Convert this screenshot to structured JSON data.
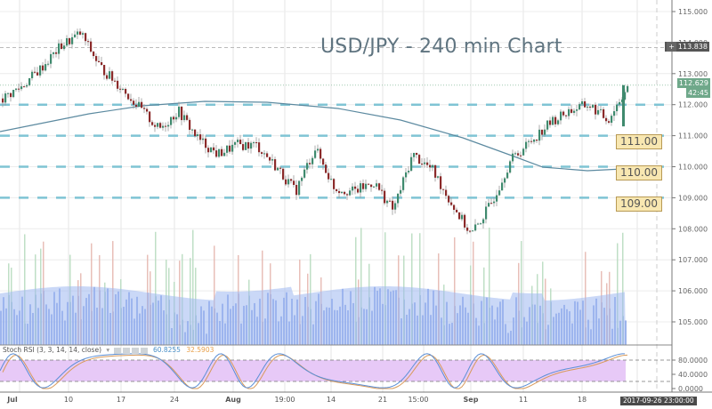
{
  "chart_data": {
    "type": "candlestick",
    "title": "USD/JPY - 240 min Chart",
    "xlabel": "",
    "ylabel": "",
    "x_tick_labels": [
      "Jul",
      "10",
      "17",
      "24",
      "Aug",
      "19:00",
      "14",
      "21",
      "15:00",
      "Sep",
      "11",
      "18"
    ],
    "y_tick_labels": [
      "115.000",
      "114.000",
      "113.000",
      "112.000",
      "111.000",
      "110.000",
      "109.000",
      "108.000",
      "107.000",
      "106.000",
      "105.000"
    ],
    "ylim": [
      104.2,
      115.2
    ],
    "grid": true,
    "horizontal_levels": [
      {
        "value": 112.0,
        "label": ""
      },
      {
        "value": 111.0,
        "label": "111.00"
      },
      {
        "value": 110.0,
        "label": "110.00"
      },
      {
        "value": 109.0,
        "label": "109.00"
      }
    ],
    "current_price": "112.629",
    "countdown": "42:45",
    "crosshair_price": "113.838",
    "crosshair_date": "2017-09-26 23:00:00",
    "price_path_approx": [
      {
        "date": "Jun 30",
        "close": 112.2
      },
      {
        "date": "Jul 3",
        "close": 112.6
      },
      {
        "date": "Jul 5",
        "close": 113.2
      },
      {
        "date": "Jul 7",
        "close": 113.9
      },
      {
        "date": "Jul 11",
        "close": 114.3
      },
      {
        "date": "Jul 13",
        "close": 113.2
      },
      {
        "date": "Jul 17",
        "close": 112.6
      },
      {
        "date": "Jul 19",
        "close": 111.9
      },
      {
        "date": "Jul 21",
        "close": 111.2
      },
      {
        "date": "Jul 24",
        "close": 111.8
      },
      {
        "date": "Jul 26",
        "close": 110.9
      },
      {
        "date": "Jul 28",
        "close": 110.4
      },
      {
        "date": "Aug 1",
        "close": 110.7
      },
      {
        "date": "Aug 4",
        "close": 110.7
      },
      {
        "date": "Aug 8",
        "close": 110.0
      },
      {
        "date": "Aug 11",
        "close": 109.2
      },
      {
        "date": "Aug 15",
        "close": 110.6
      },
      {
        "date": "Aug 18",
        "close": 109.3
      },
      {
        "date": "Aug 22",
        "close": 109.2
      },
      {
        "date": "Aug 25",
        "close": 109.5
      },
      {
        "date": "Aug 29",
        "close": 108.6
      },
      {
        "date": "Aug 31",
        "close": 110.4
      },
      {
        "date": "Sep 4",
        "close": 109.9
      },
      {
        "date": "Sep 6",
        "close": 108.8
      },
      {
        "date": "Sep 8",
        "close": 107.8
      },
      {
        "date": "Sep 11",
        "close": 108.8
      },
      {
        "date": "Sep 13",
        "close": 110.2
      },
      {
        "date": "Sep 15",
        "close": 110.8
      },
      {
        "date": "Sep 18",
        "close": 111.4
      },
      {
        "date": "Sep 20",
        "close": 111.8
      },
      {
        "date": "Sep 22",
        "close": 112.0
      },
      {
        "date": "Sep 25",
        "close": 111.5
      },
      {
        "date": "Sep 26",
        "close": 112.6
      }
    ],
    "moving_average_approx": [
      {
        "date": "Jun 30",
        "value": 110.9
      },
      {
        "date": "Jul 10",
        "value": 111.2
      },
      {
        "date": "Jul 24",
        "value": 111.9
      },
      {
        "date": "Aug 7",
        "value": 112.0
      },
      {
        "date": "Aug 21",
        "value": 111.7
      },
      {
        "date": "Sep 4",
        "value": 110.6
      },
      {
        "date": "Sep 15",
        "value": 109.8
      },
      {
        "date": "Sep 26",
        "value": 109.8
      }
    ],
    "volume_panel": {
      "type": "area+bar",
      "color": "#7b9ee6"
    },
    "indicator": {
      "name": "Stoch RSI",
      "params": "3, 3, 14, 14, close",
      "k_value": "60.8255",
      "d_value": "32.5903",
      "levels": [
        80,
        20
      ],
      "y_tick_labels": [
        "80.0000",
        "40.0000",
        "0.0000"
      ],
      "ylim": [
        0,
        100
      ]
    }
  },
  "title": "USD/JPY - 240 min Chart",
  "levels": {
    "l111": "111.00",
    "l110": "110.00",
    "l109": "109.00"
  },
  "price_axis": {
    "crosshair": "113.838",
    "current": "112.629",
    "countdown": "42:45",
    "ticks": [
      "115.000",
      "114.000",
      "113.000",
      "112.000",
      "111.000",
      "110.000",
      "109.000",
      "108.000",
      "107.000",
      "106.000",
      "105.000"
    ]
  },
  "stoch": {
    "label": "Stoch RSI (3, 3, 14, 14, close)",
    "k": "60.8255",
    "d": "32.5903",
    "ticks": [
      "80.0000",
      "40.0000",
      "0.0000"
    ]
  },
  "time_axis": {
    "ticks": [
      "Jul",
      "10",
      "17",
      "24",
      "Aug",
      "19:00",
      "14",
      "21",
      "15:00",
      "Sep",
      "11",
      "18"
    ],
    "crosshair_date": "2017-09-26 23:00:00"
  },
  "colors": {
    "up": "#3f8a6e",
    "down": "#8b2a2a",
    "level_line": "#7fc4d4",
    "ma": "#5c8aa0",
    "volume": "#7b9ee6",
    "stoch_band": "#e7c9f7",
    "stoch_k": "#5b8fd6",
    "stoch_d": "#d89a5a"
  }
}
